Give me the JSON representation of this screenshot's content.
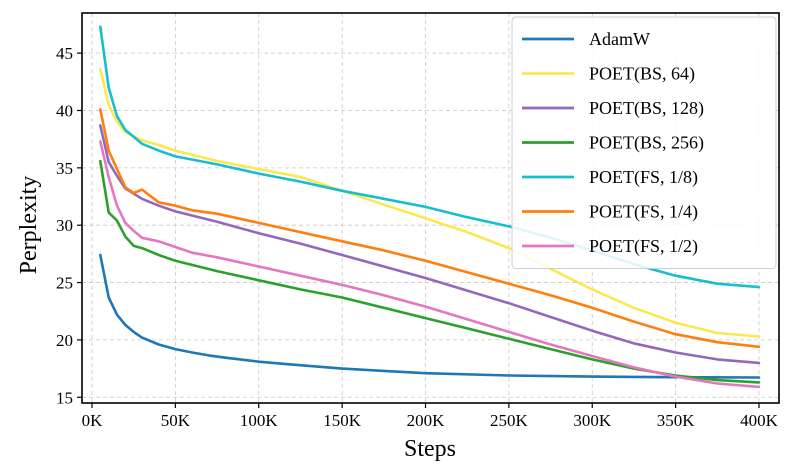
{
  "chart_data": {
    "type": "line",
    "title": "",
    "xlabel": "Steps",
    "ylabel": "Perplexity",
    "xlim": [
      -6000,
      412000
    ],
    "ylim": [
      14.5,
      48.5
    ],
    "xticks": [
      0,
      50000,
      100000,
      150000,
      200000,
      250000,
      300000,
      350000,
      400000
    ],
    "xtick_labels": [
      "0K",
      "50K",
      "100K",
      "150K",
      "200K",
      "250K",
      "300K",
      "350K",
      "400K"
    ],
    "yticks": [
      15,
      20,
      25,
      30,
      35,
      40,
      45
    ],
    "ytick_labels": [
      "15",
      "20",
      "25",
      "30",
      "35",
      "40",
      "45"
    ],
    "grid": true,
    "legend_position": "top-right",
    "series": [
      {
        "name": "AdamW",
        "color": "#1f77b4",
        "x": [
          5000,
          10000,
          15000,
          20000,
          25000,
          30000,
          40000,
          50000,
          60000,
          70000,
          80000,
          100000,
          120000,
          150000,
          175000,
          200000,
          250000,
          300000,
          350000,
          400000
        ],
        "values": [
          27.4,
          23.7,
          22.2,
          21.3,
          20.7,
          20.2,
          19.6,
          19.2,
          18.9,
          18.65,
          18.45,
          18.1,
          17.85,
          17.5,
          17.3,
          17.1,
          16.9,
          16.8,
          16.75,
          16.72
        ]
      },
      {
        "name": "POET(BS, 64)",
        "color": "#f9e94e",
        "x": [
          5000,
          10000,
          15000,
          20000,
          30000,
          40000,
          50000,
          75000,
          100000,
          125000,
          150000,
          175000,
          200000,
          225000,
          250000,
          275000,
          300000,
          325000,
          350000,
          375000,
          400000
        ],
        "values": [
          43.6,
          40.5,
          39.0,
          38.1,
          37.4,
          37.0,
          36.5,
          35.6,
          34.9,
          34.2,
          33.0,
          31.8,
          30.6,
          29.4,
          28.0,
          26.2,
          24.4,
          22.8,
          21.5,
          20.6,
          20.3
        ]
      },
      {
        "name": "POET(BS, 128)",
        "color": "#9467bd",
        "x": [
          5000,
          10000,
          15000,
          20000,
          30000,
          40000,
          50000,
          75000,
          100000,
          125000,
          150000,
          175000,
          200000,
          225000,
          250000,
          275000,
          300000,
          325000,
          350000,
          375000,
          400000
        ],
        "values": [
          38.7,
          35.5,
          34.3,
          33.2,
          32.3,
          31.7,
          31.2,
          30.3,
          29.3,
          28.4,
          27.4,
          26.4,
          25.4,
          24.3,
          23.2,
          22.0,
          20.8,
          19.7,
          18.9,
          18.3,
          18.0
        ]
      },
      {
        "name": "POET(BS, 256)",
        "color": "#2ca02c",
        "x": [
          5000,
          10000,
          15000,
          20000,
          25000,
          30000,
          40000,
          50000,
          75000,
          100000,
          125000,
          150000,
          175000,
          200000,
          225000,
          250000,
          275000,
          300000,
          325000,
          350000,
          375000,
          400000
        ],
        "values": [
          35.6,
          31.1,
          30.4,
          29.0,
          28.2,
          28.0,
          27.4,
          26.9,
          26.0,
          25.2,
          24.4,
          23.7,
          22.8,
          21.9,
          21.0,
          20.1,
          19.2,
          18.3,
          17.5,
          16.9,
          16.5,
          16.3
        ]
      },
      {
        "name": "POET(FS, 1/8)",
        "color": "#17becf",
        "x": [
          5000,
          10000,
          15000,
          20000,
          25000,
          30000,
          40000,
          50000,
          75000,
          100000,
          125000,
          150000,
          175000,
          200000,
          225000,
          250000,
          275000,
          300000,
          325000,
          350000,
          375000,
          400000
        ],
        "values": [
          47.3,
          42.0,
          39.5,
          38.3,
          37.7,
          37.1,
          36.5,
          36.0,
          35.3,
          34.5,
          33.8,
          33.0,
          32.3,
          31.6,
          30.7,
          29.9,
          28.9,
          27.8,
          26.6,
          25.6,
          24.9,
          24.6
        ]
      },
      {
        "name": "POET(FS, 1/4)",
        "color": "#ff7f0e",
        "x": [
          5000,
          10000,
          15000,
          20000,
          25000,
          30000,
          40000,
          50000,
          60000,
          75000,
          100000,
          125000,
          150000,
          175000,
          200000,
          225000,
          250000,
          275000,
          300000,
          325000,
          350000,
          375000,
          400000
        ],
        "values": [
          40.1,
          36.5,
          34.9,
          33.3,
          32.8,
          33.1,
          32.0,
          31.7,
          31.3,
          31.0,
          30.2,
          29.4,
          28.6,
          27.8,
          26.9,
          25.9,
          24.9,
          23.9,
          22.8,
          21.6,
          20.5,
          19.8,
          19.4
        ]
      },
      {
        "name": "POET(FS, 1/2)",
        "color": "#e377c2",
        "x": [
          5000,
          10000,
          15000,
          20000,
          25000,
          30000,
          40000,
          50000,
          60000,
          75000,
          100000,
          125000,
          150000,
          175000,
          200000,
          225000,
          250000,
          275000,
          300000,
          325000,
          350000,
          375000,
          400000
        ],
        "values": [
          37.3,
          34.2,
          31.7,
          30.2,
          29.5,
          28.9,
          28.6,
          28.1,
          27.6,
          27.2,
          26.4,
          25.6,
          24.8,
          23.9,
          22.9,
          21.8,
          20.7,
          19.6,
          18.6,
          17.6,
          16.8,
          16.2,
          15.9
        ]
      }
    ]
  }
}
